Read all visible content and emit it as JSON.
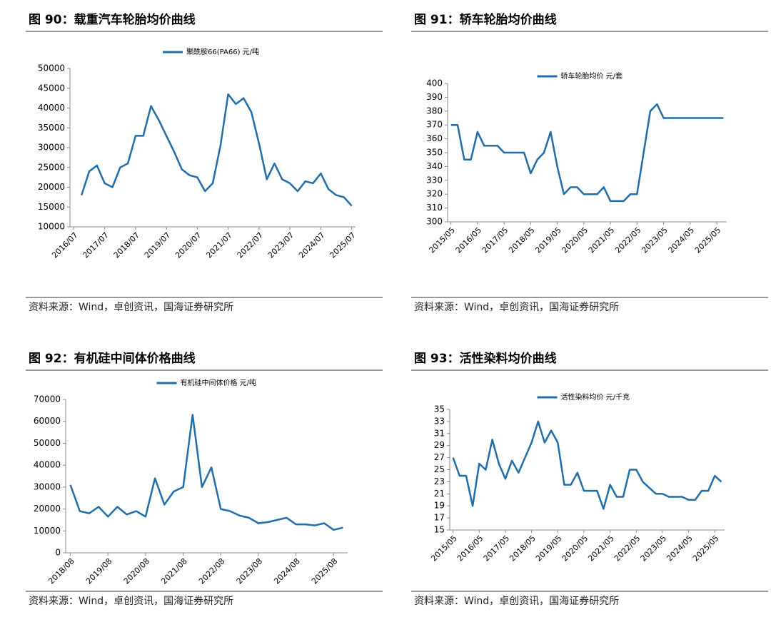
{
  "chart_data": [
    {
      "type": "line",
      "title": "图 90：载重汽车轮胎均价曲线",
      "source": "资料来源：Wind，卓创资讯，国海证券研究所",
      "categories": [
        "2016/07",
        null,
        null,
        null,
        "2017/07",
        null,
        null,
        null,
        "2018/07",
        null,
        null,
        null,
        "2019/07",
        null,
        null,
        null,
        "2020/07",
        null,
        null,
        null,
        "2021/07",
        null,
        null,
        null,
        "2022/07",
        null,
        null,
        null,
        "2023/07",
        null,
        null,
        null,
        "2024/07",
        null,
        null,
        null,
        "2025/07"
      ],
      "series": [
        {
          "name": "聚酰胺66(PA66) 元/吨",
          "color": "#1f6eab",
          "values": [
            null,
            18000,
            24000,
            25500,
            21000,
            20000,
            25000,
            26000,
            33000,
            33000,
            40500,
            37000,
            33000,
            29000,
            24500,
            23000,
            22500,
            19000,
            21000,
            30500,
            43500,
            41000,
            42500,
            39000,
            31000,
            22000,
            26000,
            22000,
            21000,
            19000,
            21500,
            21000,
            23500,
            19500,
            18000,
            17500,
            15300
          ]
        }
      ],
      "ylim": [
        10000,
        50000
      ],
      "yticks": [
        10000,
        15000,
        20000,
        25000,
        30000,
        35000,
        40000,
        45000,
        50000
      ]
    },
    {
      "type": "line",
      "title": "图 91：轿车轮胎均价曲线",
      "source": "资料来源：Wind，卓创资讯，国海证券研究所",
      "categories": [
        "2015/05",
        null,
        null,
        null,
        "2016/05",
        null,
        null,
        null,
        "2017/05",
        null,
        null,
        null,
        "2018/05",
        null,
        null,
        null,
        "2019/05",
        null,
        null,
        null,
        "2020/05",
        null,
        null,
        null,
        "2021/05",
        null,
        null,
        null,
        "2022/05",
        null,
        null,
        null,
        "2023/05",
        null,
        null,
        null,
        "2024/05",
        null,
        null,
        null,
        "2025/05",
        null
      ],
      "series": [
        {
          "name": "轿车轮胎均价 元/套",
          "color": "#1f6eab",
          "values": [
            370,
            370,
            345,
            345,
            365,
            355,
            355,
            355,
            350,
            350,
            350,
            350,
            335,
            345,
            350,
            365,
            340,
            320,
            325,
            325,
            320,
            320,
            320,
            325,
            315,
            315,
            315,
            320,
            320,
            350,
            380,
            385,
            375,
            375,
            375,
            375,
            375,
            375,
            375,
            375,
            375,
            375
          ]
        }
      ],
      "ylim": [
        300,
        400
      ],
      "yticks": [
        300,
        310,
        320,
        330,
        340,
        350,
        360,
        370,
        380,
        390,
        400
      ]
    },
    {
      "type": "line",
      "title": "图 92：有机硅中间体价格曲线",
      "source": "资料来源：Wind，卓创资讯，国海证券研究所",
      "categories": [
        "2018/08",
        null,
        null,
        null,
        "2019/08",
        null,
        null,
        null,
        "2020/08",
        null,
        null,
        null,
        "2021/08",
        null,
        null,
        null,
        "2022/08",
        null,
        null,
        null,
        "2023/08",
        null,
        null,
        null,
        "2024/08",
        null,
        null,
        null,
        "2025/08",
        null
      ],
      "series": [
        {
          "name": "有机硅中间体价格 元/吨",
          "color": "#1f6eab",
          "values": [
            31000,
            19000,
            18000,
            21000,
            16500,
            21000,
            17500,
            19000,
            16500,
            34000,
            22000,
            28000,
            30000,
            63000,
            30000,
            39000,
            20000,
            19000,
            17000,
            16000,
            13500,
            14000,
            15000,
            16000,
            13000,
            13000,
            12500,
            13500,
            10500,
            11500
          ]
        }
      ],
      "ylim": [
        0,
        70000
      ],
      "yticks": [
        0,
        10000,
        20000,
        30000,
        40000,
        50000,
        60000,
        70000
      ]
    },
    {
      "type": "line",
      "title": "图 93：活性染料均价曲线",
      "source": "资料来源：Wind，卓创资讯，国海证券研究所",
      "categories": [
        "2015/05",
        null,
        null,
        null,
        "2016/05",
        null,
        null,
        null,
        "2017/05",
        null,
        null,
        null,
        "2018/05",
        null,
        null,
        null,
        "2019/05",
        null,
        null,
        null,
        "2020/05",
        null,
        null,
        null,
        "2021/05",
        null,
        null,
        null,
        "2022/05",
        null,
        null,
        null,
        "2023/05",
        null,
        null,
        null,
        "2024/05",
        null,
        null,
        null,
        "2025/05",
        null
      ],
      "series": [
        {
          "name": "活性染料均价 元/千克",
          "color": "#1f6eab",
          "values": [
            27,
            24,
            24,
            19,
            26,
            25,
            30,
            26,
            23.5,
            26.5,
            24.5,
            27,
            29.5,
            33,
            29.5,
            31.5,
            29.5,
            22.5,
            22.5,
            24.5,
            21.5,
            21.5,
            21.5,
            18.5,
            22.5,
            20.5,
            20.5,
            25,
            25,
            23,
            22,
            21,
            21,
            20.5,
            20.5,
            20.5,
            20,
            20,
            21.5,
            21.5,
            24,
            23
          ]
        }
      ],
      "ylim": [
        15,
        35
      ],
      "yticks": [
        15,
        17,
        19,
        21,
        23,
        25,
        27,
        29,
        31,
        33,
        35
      ]
    }
  ]
}
